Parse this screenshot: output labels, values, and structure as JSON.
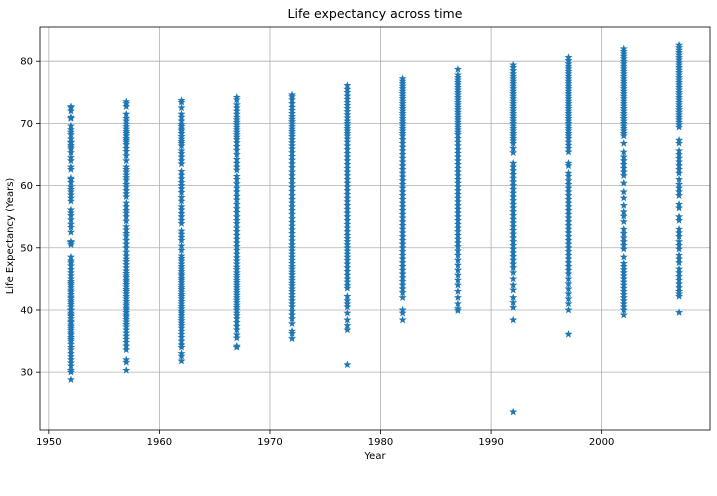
{
  "chart_data": {
    "type": "scatter",
    "title": "Life expectancy across time",
    "xlabel": "Year",
    "ylabel": "Life Expectancy (Years)",
    "xlim": [
      1949.2,
      2009.8
    ],
    "ylim": [
      20.7,
      85.5
    ],
    "xticks": [
      1950,
      1960,
      1970,
      1980,
      1990,
      2000
    ],
    "yticks": [
      30,
      40,
      50,
      60,
      70,
      80
    ],
    "grid": true,
    "marker": "star",
    "color": "#1f77b4",
    "series": [
      {
        "x_year": 1952,
        "values": [
          72.7,
          72.5,
          72.0,
          71.0,
          70.8,
          69.6,
          69.0,
          68.6,
          68.2,
          67.5,
          67.0,
          66.9,
          66.5,
          66.2,
          65.9,
          65.3,
          64.5,
          64.0,
          63.0,
          62.6,
          61.2,
          61.0,
          60.5,
          59.8,
          59.4,
          59.0,
          58.5,
          58.0,
          57.5,
          56.1,
          55.6,
          55.2,
          54.5,
          53.8,
          53.3,
          52.5,
          51.0,
          50.9,
          50.8,
          50.5,
          48.5,
          47.9,
          47.6,
          47.1,
          46.5,
          46.0,
          45.5,
          45.0,
          44.6,
          44.3,
          44.0,
          43.6,
          43.2,
          42.9,
          42.5,
          42.1,
          41.9,
          41.5,
          41.2,
          40.9,
          40.5,
          40.0,
          39.9,
          39.5,
          39.2,
          39.0,
          38.6,
          38.2,
          38.0,
          37.6,
          37.3,
          37.0,
          36.7,
          36.3,
          36.0,
          35.6,
          35.3,
          35.0,
          34.5,
          34.0,
          33.6,
          33.0,
          32.5,
          32.0,
          31.5,
          31.0,
          30.3,
          30.0,
          28.8
        ]
      },
      {
        "x_year": 1957,
        "values": [
          73.5,
          73.2,
          72.7,
          71.5,
          70.8,
          70.4,
          69.9,
          69.5,
          69.1,
          68.7,
          68.4,
          68.0,
          67.6,
          67.3,
          67.0,
          66.6,
          66.0,
          65.5,
          64.8,
          64.0,
          63.0,
          62.6,
          62.2,
          61.7,
          61.3,
          60.9,
          60.2,
          59.8,
          59.2,
          58.7,
          58.2,
          57.2,
          56.6,
          56.0,
          55.6,
          55.0,
          54.3,
          53.4,
          52.9,
          52.3,
          51.9,
          51.2,
          50.6,
          50.0,
          49.3,
          48.7,
          48.2,
          47.8,
          47.3,
          46.8,
          46.3,
          45.9,
          45.5,
          45.2,
          44.8,
          44.5,
          44.1,
          43.7,
          43.3,
          43.0,
          42.6,
          42.2,
          41.8,
          41.4,
          41.0,
          40.7,
          40.3,
          40.0,
          39.6,
          39.2,
          38.9,
          38.5,
          38.1,
          37.7,
          37.3,
          36.8,
          36.3,
          35.8,
          35.3,
          34.8,
          34.2,
          33.6,
          32.0,
          31.6,
          30.3
        ]
      },
      {
        "x_year": 1962,
        "values": [
          73.7,
          73.4,
          72.5,
          71.5,
          71.0,
          70.4,
          69.8,
          69.5,
          69.1,
          68.8,
          68.4,
          67.9,
          67.5,
          67.1,
          66.8,
          66.4,
          65.6,
          65.2,
          64.6,
          64.0,
          63.5,
          62.3,
          61.7,
          61.1,
          60.5,
          60.0,
          59.5,
          58.9,
          58.1,
          57.5,
          56.6,
          56.1,
          55.5,
          55.0,
          54.4,
          53.9,
          52.7,
          52.2,
          51.7,
          51.2,
          50.3,
          49.6,
          48.7,
          48.3,
          47.9,
          47.4,
          47.0,
          46.6,
          46.2,
          45.8,
          45.5,
          45.1,
          44.8,
          44.4,
          44.0,
          43.6,
          43.3,
          42.9,
          42.5,
          42.2,
          41.8,
          41.4,
          41.0,
          40.6,
          40.2,
          39.8,
          39.5,
          39.1,
          38.7,
          38.3,
          37.9,
          37.5,
          37.1,
          36.6,
          36.1,
          35.6,
          35.0,
          34.4,
          34.0,
          33.0,
          32.6,
          31.8
        ]
      },
      {
        "x_year": 1967,
        "values": [
          74.2,
          73.8,
          73.0,
          72.5,
          72.0,
          71.5,
          71.0,
          70.6,
          70.2,
          69.8,
          69.4,
          69.0,
          68.6,
          68.2,
          67.8,
          67.4,
          66.9,
          66.3,
          65.7,
          65.0,
          64.2,
          63.6,
          63.0,
          62.5,
          61.5,
          61.0,
          60.3,
          59.6,
          59.0,
          58.3,
          57.7,
          57.0,
          56.3,
          55.7,
          55.0,
          54.4,
          53.9,
          53.2,
          52.6,
          52.0,
          51.4,
          50.8,
          50.2,
          49.6,
          49.0,
          48.4,
          47.9,
          47.4,
          46.9,
          46.5,
          46.0,
          45.6,
          45.2,
          44.8,
          44.4,
          44.0,
          43.6,
          43.2,
          42.8,
          42.4,
          42.0,
          41.6,
          41.2,
          40.8,
          40.4,
          40.0,
          39.5,
          39.1,
          38.6,
          38.0,
          37.4,
          36.8,
          36.0,
          35.5,
          34.2,
          34.0
        ]
      },
      {
        "x_year": 1972,
        "values": [
          74.6,
          74.3,
          73.8,
          73.2,
          72.6,
          72.1,
          71.6,
          71.1,
          70.7,
          70.3,
          69.9,
          69.5,
          69.1,
          68.7,
          68.3,
          67.9,
          67.4,
          66.9,
          66.4,
          65.9,
          65.3,
          64.7,
          64.1,
          63.5,
          62.9,
          62.2,
          61.6,
          61.0,
          60.3,
          59.7,
          59.1,
          58.4,
          57.8,
          57.2,
          56.6,
          56.0,
          55.4,
          54.7,
          54.1,
          53.5,
          52.9,
          52.3,
          51.7,
          51.1,
          50.5,
          50.0,
          49.5,
          49.0,
          48.5,
          48.0,
          47.5,
          47.0,
          46.6,
          46.1,
          45.7,
          45.2,
          44.8,
          44.3,
          43.9,
          43.4,
          43.0,
          42.5,
          42.0,
          41.5,
          41.0,
          40.5,
          39.8,
          39.2,
          38.6,
          37.8,
          36.6,
          36.2,
          35.4
        ]
      },
      {
        "x_year": 1977,
        "values": [
          76.1,
          75.5,
          75.0,
          74.4,
          73.9,
          73.4,
          72.9,
          72.4,
          71.9,
          71.4,
          70.9,
          70.4,
          70.0,
          69.6,
          69.2,
          68.8,
          68.4,
          68.0,
          67.5,
          67.0,
          66.4,
          65.8,
          65.2,
          64.6,
          64.0,
          63.4,
          62.8,
          62.2,
          61.6,
          61.0,
          60.4,
          59.8,
          59.2,
          58.6,
          58.0,
          57.4,
          56.8,
          56.2,
          55.6,
          55.0,
          54.4,
          53.8,
          53.2,
          52.6,
          52.0,
          51.5,
          51.0,
          50.5,
          50.0,
          49.5,
          49.0,
          48.5,
          48.0,
          47.4,
          46.8,
          46.2,
          45.6,
          45.0,
          44.5,
          43.9,
          43.5,
          42.2,
          41.5,
          41.0,
          40.5,
          39.5,
          38.4,
          37.5,
          36.8,
          31.2
        ]
      },
      {
        "x_year": 1982,
        "values": [
          77.2,
          76.8,
          76.4,
          76.0,
          75.6,
          75.2,
          74.8,
          74.4,
          74.0,
          73.6,
          73.2,
          72.8,
          72.4,
          72.0,
          71.6,
          71.2,
          70.8,
          70.4,
          70.0,
          69.6,
          69.2,
          68.8,
          68.4,
          68.0,
          67.4,
          66.8,
          66.2,
          65.6,
          65.0,
          64.4,
          63.8,
          63.2,
          62.6,
          62.0,
          61.4,
          60.8,
          60.2,
          59.6,
          59.0,
          58.4,
          57.8,
          57.2,
          56.6,
          56.0,
          55.4,
          54.8,
          54.2,
          53.6,
          53.0,
          52.4,
          51.8,
          51.2,
          50.6,
          50.0,
          49.4,
          48.8,
          48.2,
          47.6,
          47.0,
          46.4,
          45.8,
          45.2,
          44.6,
          44.0,
          43.4,
          42.8,
          42.0,
          40.0,
          39.5,
          38.4
        ]
      },
      {
        "x_year": 1987,
        "values": [
          78.7,
          77.8,
          77.4,
          77.0,
          76.6,
          76.2,
          75.8,
          75.4,
          75.0,
          74.6,
          74.2,
          73.8,
          73.4,
          73.0,
          72.6,
          72.2,
          71.8,
          71.4,
          71.0,
          70.6,
          70.2,
          69.8,
          69.4,
          69.0,
          68.6,
          68.2,
          67.6,
          67.0,
          66.4,
          65.8,
          65.2,
          64.6,
          64.0,
          63.4,
          62.8,
          62.2,
          61.6,
          61.0,
          60.4,
          59.8,
          59.2,
          58.6,
          58.0,
          57.4,
          56.8,
          56.2,
          55.6,
          55.0,
          54.4,
          53.8,
          53.2,
          52.6,
          52.0,
          51.4,
          50.8,
          50.2,
          49.5,
          48.8,
          48.0,
          47.2,
          46.4,
          45.6,
          44.8,
          44.0,
          43.0,
          42.0,
          41.0,
          40.2,
          39.9
        ]
      },
      {
        "x_year": 1992,
        "values": [
          79.4,
          79.0,
          78.5,
          78.0,
          77.6,
          77.2,
          76.8,
          76.4,
          76.0,
          75.6,
          75.2,
          74.8,
          74.4,
          74.0,
          73.6,
          73.2,
          72.8,
          72.4,
          72.0,
          71.6,
          71.2,
          70.8,
          70.4,
          70.0,
          69.6,
          69.2,
          68.8,
          68.4,
          68.0,
          67.6,
          67.2,
          66.8,
          66.0,
          65.3,
          63.6,
          63.0,
          62.4,
          61.8,
          61.2,
          60.6,
          60.0,
          59.4,
          58.8,
          58.2,
          57.6,
          57.0,
          56.4,
          55.8,
          55.2,
          54.6,
          54.0,
          53.4,
          52.8,
          52.2,
          51.6,
          51.0,
          50.4,
          49.8,
          49.2,
          48.6,
          48.0,
          47.4,
          46.8,
          46.0,
          45.0,
          44.0,
          43.2,
          42.0,
          41.2,
          40.4,
          38.4,
          23.6
        ]
      },
      {
        "x_year": 1997,
        "values": [
          80.6,
          80.1,
          79.6,
          79.2,
          78.8,
          78.4,
          78.0,
          77.6,
          77.2,
          76.8,
          76.4,
          76.0,
          75.6,
          75.2,
          74.8,
          74.4,
          74.0,
          73.6,
          73.2,
          72.8,
          72.4,
          72.0,
          71.6,
          71.2,
          70.8,
          70.4,
          70.0,
          69.6,
          69.2,
          68.8,
          68.4,
          68.0,
          67.6,
          67.0,
          66.5,
          66.0,
          65.4,
          63.6,
          63.2,
          62.0,
          61.5,
          60.8,
          60.2,
          59.6,
          59.0,
          58.4,
          57.8,
          57.2,
          56.6,
          56.0,
          55.4,
          54.8,
          54.2,
          53.6,
          53.0,
          52.4,
          51.8,
          51.2,
          50.6,
          50.0,
          49.4,
          48.8,
          48.2,
          47.6,
          47.0,
          46.4,
          45.8,
          45.0,
          44.2,
          43.4,
          42.6,
          41.8,
          41.0,
          40.0,
          36.1
        ]
      },
      {
        "x_year": 2002,
        "values": [
          82.0,
          81.6,
          81.2,
          80.8,
          80.4,
          80.0,
          79.6,
          79.2,
          78.8,
          78.4,
          78.0,
          77.6,
          77.2,
          76.8,
          76.4,
          76.0,
          75.6,
          75.2,
          74.8,
          74.4,
          74.0,
          73.6,
          73.2,
          72.8,
          72.4,
          72.0,
          71.6,
          71.2,
          70.8,
          70.4,
          70.0,
          69.6,
          69.2,
          68.8,
          68.4,
          68.0,
          66.8,
          65.4,
          64.6,
          64.0,
          63.4,
          62.8,
          62.2,
          61.6,
          60.4,
          59.0,
          58.0,
          56.8,
          55.8,
          55.1,
          54.2,
          53.0,
          52.3,
          51.6,
          51.0,
          50.4,
          49.8,
          48.5,
          47.5,
          47.0,
          46.5,
          46.0,
          45.5,
          45.0,
          44.5,
          44.0,
          43.5,
          43.0,
          42.5,
          42.0,
          41.5,
          41.0,
          40.5,
          40.0,
          39.2
        ]
      },
      {
        "x_year": 2007,
        "values": [
          82.6,
          82.2,
          81.8,
          81.4,
          81.0,
          80.6,
          80.2,
          79.8,
          79.4,
          79.0,
          78.6,
          78.2,
          77.8,
          77.4,
          77.0,
          76.6,
          76.2,
          75.8,
          75.4,
          75.0,
          74.6,
          74.2,
          73.8,
          73.4,
          73.0,
          72.6,
          72.2,
          71.8,
          71.4,
          71.0,
          70.6,
          70.2,
          69.8,
          69.4,
          67.3,
          66.8,
          65.6,
          65.0,
          64.4,
          63.8,
          63.2,
          62.6,
          62.0,
          61.0,
          60.2,
          59.6,
          59.0,
          58.4,
          57.0,
          56.4,
          55.0,
          54.4,
          53.0,
          52.4,
          51.8,
          51.0,
          50.4,
          49.8,
          48.8,
          48.2,
          47.6,
          46.6,
          46.0,
          45.4,
          44.8,
          44.2,
          43.6,
          43.0,
          42.6,
          42.2,
          39.6
        ]
      }
    ]
  }
}
